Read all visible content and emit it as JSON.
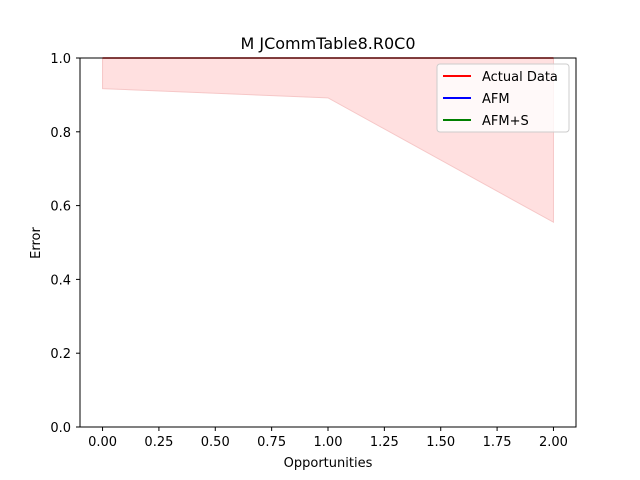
{
  "chart_data": {
    "type": "line",
    "title": "M  JCommTable8.R0C0",
    "xlabel": "Opportunities",
    "ylabel": "Error",
    "xlim": [
      -0.1,
      2.1
    ],
    "ylim": [
      0.0,
      1.0
    ],
    "x_ticks": [
      0.0,
      0.25,
      0.5,
      0.75,
      1.0,
      1.25,
      1.5,
      1.75,
      2.0
    ],
    "x_tick_labels": [
      "0.00",
      "0.25",
      "0.50",
      "0.75",
      "1.00",
      "1.25",
      "1.50",
      "1.75",
      "2.00"
    ],
    "y_ticks": [
      0.0,
      0.2,
      0.4,
      0.6,
      0.8,
      1.0
    ],
    "y_tick_labels": [
      "0.0",
      "0.2",
      "0.4",
      "0.6",
      "0.8",
      "1.0"
    ],
    "grid": false,
    "legend_position": "top-right",
    "band": {
      "color": "#ffe0e0",
      "x": [
        0,
        1,
        2
      ],
      "lower": [
        0.917,
        0.892,
        0.555
      ],
      "upper": [
        1.0,
        1.0,
        1.0
      ]
    },
    "series": [
      {
        "name": "Actual Data",
        "color": "#ff0000",
        "x": [
          0,
          1,
          2
        ],
        "y": [
          1.0,
          1.0,
          1.0
        ]
      },
      {
        "name": "AFM",
        "color": "#0000ff",
        "x": [],
        "y": []
      },
      {
        "name": "AFM+S",
        "color": "#008000",
        "x": [],
        "y": []
      }
    ]
  }
}
